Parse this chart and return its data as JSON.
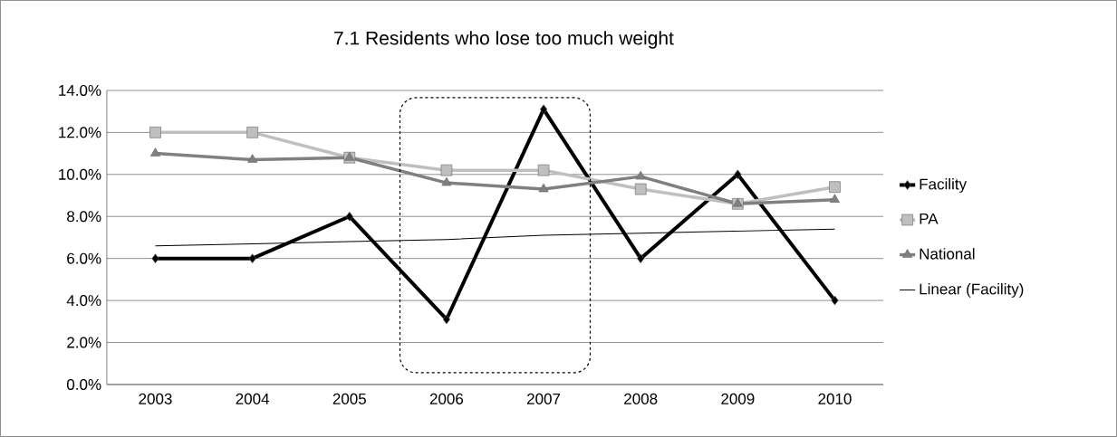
{
  "chart_data": {
    "type": "line",
    "title": "7.1 Residents who lose too much weight",
    "categories": [
      "2003",
      "2004",
      "2005",
      "2006",
      "2007",
      "2008",
      "2009",
      "2010"
    ],
    "series": [
      {
        "name": "Facility",
        "color": "#000000",
        "marker": "diamond",
        "values": [
          6.0,
          6.0,
          8.0,
          3.1,
          13.1,
          6.0,
          10.0,
          4.0
        ]
      },
      {
        "name": "PA",
        "color": "#bfbfbf",
        "marker": "square",
        "values": [
          12.0,
          12.0,
          10.8,
          10.2,
          10.2,
          9.3,
          8.6,
          9.4
        ]
      },
      {
        "name": "National",
        "color": "#808080",
        "marker": "triangle",
        "values": [
          11.0,
          10.7,
          10.8,
          9.6,
          9.3,
          9.9,
          8.6,
          8.8
        ]
      },
      {
        "name": "Linear (Facility)",
        "color": "#000000",
        "marker": "none",
        "values": [
          6.6,
          6.7,
          6.8,
          6.9,
          7.1,
          7.2,
          7.3,
          7.4
        ]
      }
    ],
    "ylim": [
      0,
      14
    ],
    "yticks": [
      {
        "value": 0,
        "label": "0.0%"
      },
      {
        "value": 2,
        "label": "2.0%"
      },
      {
        "value": 4,
        "label": "4.0%"
      },
      {
        "value": 6,
        "label": "6.0%"
      },
      {
        "value": 8,
        "label": "8.0%"
      },
      {
        "value": 10,
        "label": "10.0%"
      },
      {
        "value": 12,
        "label": "12.0%"
      },
      {
        "value": 14,
        "label": "14.0%"
      }
    ],
    "grid": "y",
    "legend": "right"
  }
}
